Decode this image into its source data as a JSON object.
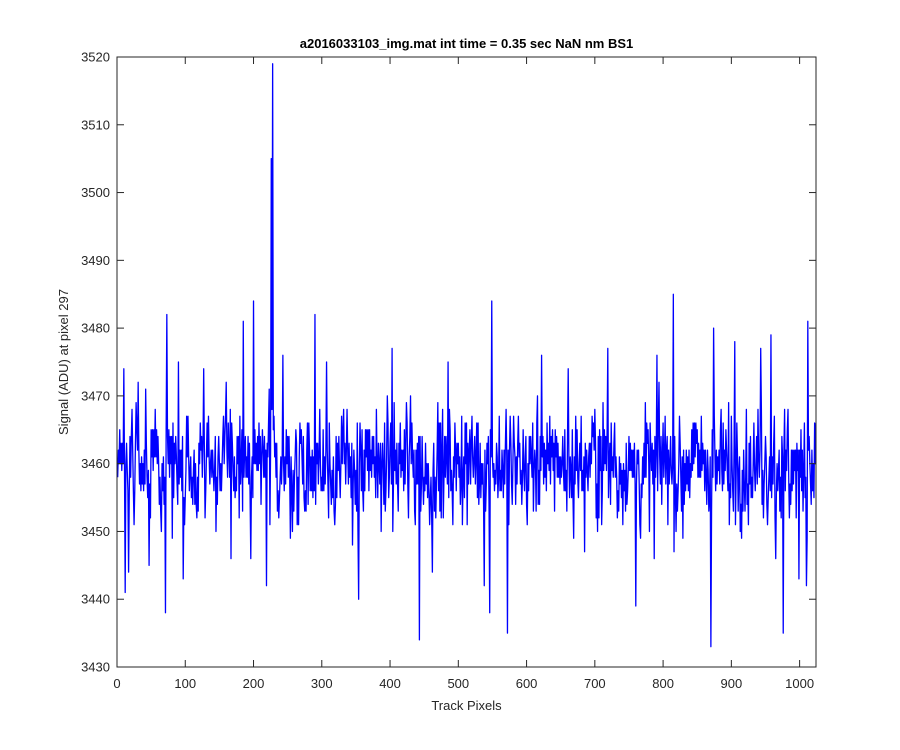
{
  "chart_data": {
    "type": "line",
    "title": "a2016033103_img.mat int time = 0.35 sec  NaN nm BS1",
    "xlabel": "Track Pixels",
    "ylabel": "Signal (ADU) at pixel 297",
    "xlim": [
      0,
      1024
    ],
    "ylim": [
      3430,
      3520
    ],
    "xticks": [
      0,
      100,
      200,
      300,
      400,
      500,
      600,
      700,
      800,
      900,
      1000
    ],
    "yticks": [
      3430,
      3440,
      3450,
      3460,
      3470,
      3480,
      3490,
      3500,
      3510,
      3520
    ],
    "grid": false,
    "legend": "none",
    "line_color": "#0000ff",
    "series": [
      {
        "x_start": 1,
        "x_step": 1,
        "count": 1024,
        "baseline": 3460,
        "noise_amplitude": 6,
        "values_sampled": [
          {
            "x": 10,
            "y": 3474
          },
          {
            "x": 12,
            "y": 3441
          },
          {
            "x": 17,
            "y": 3444
          },
          {
            "x": 31,
            "y": 3472
          },
          {
            "x": 47,
            "y": 3445
          },
          {
            "x": 71,
            "y": 3438
          },
          {
            "x": 73,
            "y": 3482
          },
          {
            "x": 90,
            "y": 3475
          },
          {
            "x": 97,
            "y": 3443
          },
          {
            "x": 127,
            "y": 3474
          },
          {
            "x": 167,
            "y": 3446
          },
          {
            "x": 178,
            "y": 3464
          },
          {
            "x": 185,
            "y": 3481
          },
          {
            "x": 196,
            "y": 3446
          },
          {
            "x": 200,
            "y": 3484
          },
          {
            "x": 219,
            "y": 3442
          },
          {
            "x": 228,
            "y": 3519
          },
          {
            "x": 243,
            "y": 3476
          },
          {
            "x": 266,
            "y": 3451
          },
          {
            "x": 290,
            "y": 3482
          },
          {
            "x": 307,
            "y": 3475
          },
          {
            "x": 345,
            "y": 3448
          },
          {
            "x": 354,
            "y": 3440
          },
          {
            "x": 403,
            "y": 3477
          },
          {
            "x": 443,
            "y": 3434
          },
          {
            "x": 462,
            "y": 3444
          },
          {
            "x": 485,
            "y": 3475
          },
          {
            "x": 513,
            "y": 3451
          },
          {
            "x": 538,
            "y": 3442
          },
          {
            "x": 546,
            "y": 3438
          },
          {
            "x": 549,
            "y": 3484
          },
          {
            "x": 572,
            "y": 3435
          },
          {
            "x": 622,
            "y": 3476
          },
          {
            "x": 661,
            "y": 3474
          },
          {
            "x": 685,
            "y": 3447
          },
          {
            "x": 719,
            "y": 3477
          },
          {
            "x": 760,
            "y": 3439
          },
          {
            "x": 787,
            "y": 3446
          },
          {
            "x": 791,
            "y": 3476
          },
          {
            "x": 815,
            "y": 3485
          },
          {
            "x": 829,
            "y": 3449
          },
          {
            "x": 870,
            "y": 3433
          },
          {
            "x": 874,
            "y": 3480
          },
          {
            "x": 905,
            "y": 3478
          },
          {
            "x": 943,
            "y": 3477
          },
          {
            "x": 958,
            "y": 3479
          },
          {
            "x": 965,
            "y": 3446
          },
          {
            "x": 976,
            "y": 3435
          },
          {
            "x": 999,
            "y": 3443
          },
          {
            "x": 1010,
            "y": 3442
          },
          {
            "x": 1012,
            "y": 3481
          }
        ]
      }
    ]
  }
}
